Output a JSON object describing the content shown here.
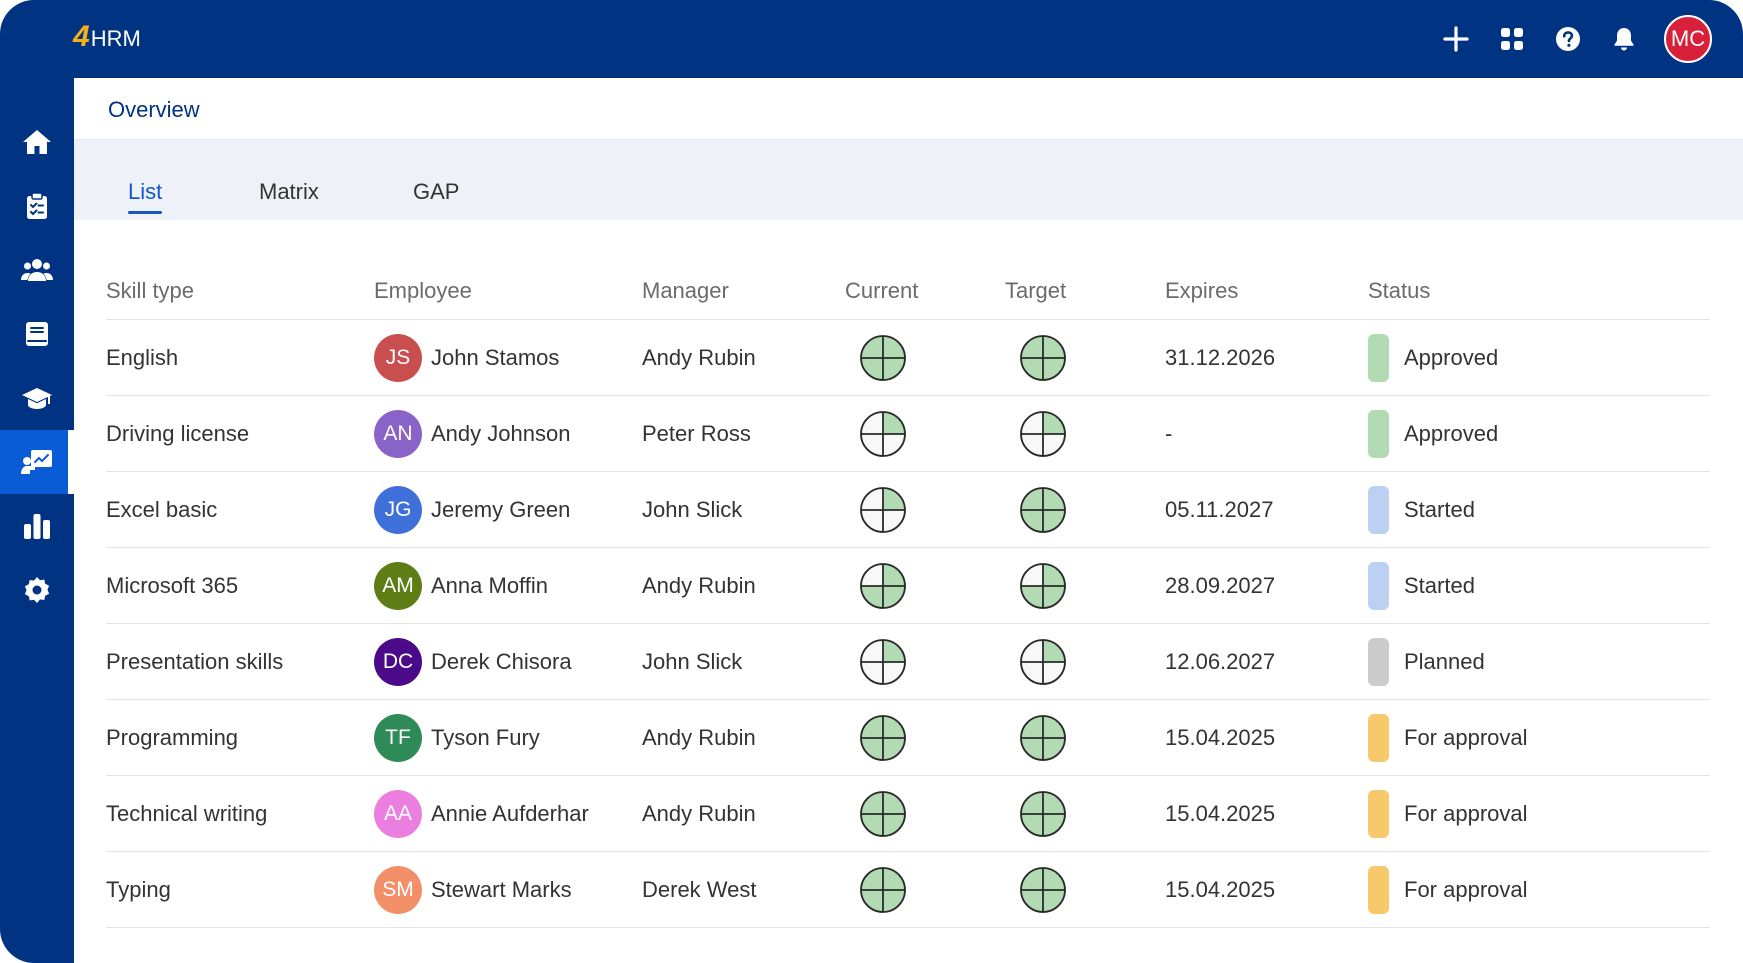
{
  "app": {
    "logo_mark": "4",
    "logo_text": "HRM",
    "user_initials": "MC"
  },
  "topbar": {
    "icons": [
      "plus-icon",
      "apps-grid-icon",
      "help-icon",
      "bell-icon"
    ],
    "avatar_color": "#d8203a"
  },
  "sidebar": {
    "items": [
      {
        "icon": "home-icon",
        "active": false
      },
      {
        "icon": "clipboard-icon",
        "active": false
      },
      {
        "icon": "people-icon",
        "active": false
      },
      {
        "icon": "book-icon",
        "active": false
      },
      {
        "icon": "graduation-cap-icon",
        "active": false
      },
      {
        "icon": "skills-presentation-icon",
        "active": true
      },
      {
        "icon": "bar-chart-icon",
        "active": false
      },
      {
        "icon": "gear-icon",
        "active": false
      }
    ]
  },
  "breadcrumb": "Overview",
  "tabs": [
    {
      "label": "List",
      "active": true
    },
    {
      "label": "Matrix",
      "active": false
    },
    {
      "label": "GAP",
      "active": false
    }
  ],
  "table": {
    "columns": [
      "Skill type",
      "Employee",
      "Manager",
      "Current",
      "Target",
      "Expires",
      "Status"
    ],
    "status_colors": {
      "Approved": "#b3dbb3",
      "Started": "#bcd1f2",
      "Planned": "#cccccc",
      "For approval": "#f7c96a"
    },
    "rows": [
      {
        "skill": "English",
        "initials": "JS",
        "employee": "John Stamos",
        "avatar_color": "#c94f4f",
        "manager": "Andy Rubin",
        "current": 4,
        "target": 4,
        "expires": "31.12.2026",
        "status": "Approved"
      },
      {
        "skill": "Driving license",
        "initials": "AN",
        "employee": "Andy Johnson",
        "avatar_color": "#8a63c8",
        "manager": "Peter Ross",
        "current": 1,
        "target": 1,
        "expires": "-",
        "status": "Approved"
      },
      {
        "skill": "Excel basic",
        "initials": "JG",
        "employee": "Jeremy Green",
        "avatar_color": "#3f6fd8",
        "manager": "John Slick",
        "current": 1,
        "target": 4,
        "expires": "05.11.2027",
        "status": "Started"
      },
      {
        "skill": "Microsoft 365",
        "initials": "AM",
        "employee": "Anna Moffin",
        "avatar_color": "#5e7d15",
        "manager": "Andy Rubin",
        "current": 3,
        "target": 3,
        "expires": "28.09.2027",
        "status": "Started"
      },
      {
        "skill": "Presentation skills",
        "initials": "DC",
        "employee": "Derek Chisora",
        "avatar_color": "#4b0a8a",
        "manager": "John Slick",
        "current": 1,
        "target": 1,
        "expires": "12.06.2027",
        "status": "Planned"
      },
      {
        "skill": "Programming",
        "initials": "TF",
        "employee": "Tyson Fury",
        "avatar_color": "#2e8b57",
        "manager": "Andy Rubin",
        "current": 4,
        "target": 4,
        "expires": "15.04.2025",
        "status": "For approval"
      },
      {
        "skill": "Technical writing",
        "initials": "AA",
        "employee": "Annie Aufderhar",
        "avatar_color": "#ea7fe0",
        "manager": "Andy Rubin",
        "current": 4,
        "target": 4,
        "expires": "15.04.2025",
        "status": "For approval"
      },
      {
        "skill": "Typing",
        "initials": "SM",
        "employee": "Stewart Marks",
        "avatar_color": "#f28f69",
        "manager": "Derek West",
        "current": 4,
        "target": 4,
        "expires": "15.04.2025",
        "status": "For approval"
      }
    ]
  }
}
